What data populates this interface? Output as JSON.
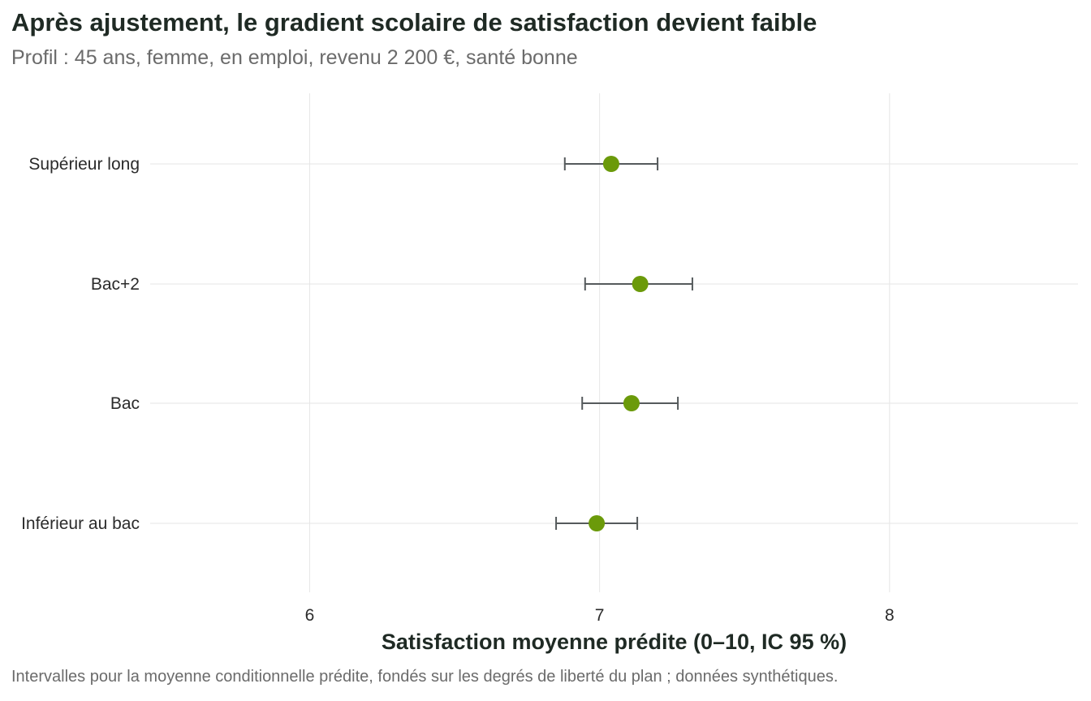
{
  "chart_data": {
    "type": "scatter",
    "title": "Après ajustement, le gradient scolaire de satisfaction devient faible",
    "subtitle": "Profil : 45 ans, femme, en emploi, revenu 2 200 €, santé bonne",
    "xlabel": "Satisfaction moyenne prédite (0–10, IC 95 %)",
    "caption": "Intervalles pour la moyenne conditionnelle prédite, fondés sur les degrés de liberté du plan ; données synthétiques.",
    "xlim": [
      5.45,
      8.65
    ],
    "xticks": [
      6,
      7,
      8
    ],
    "grid": true,
    "point_color": "#6b9a0a",
    "errorbar_color": "#555a5c",
    "categories": [
      "Supérieur long",
      "Bac+2",
      "Bac",
      "Inférieur au bac"
    ],
    "estimate": [
      7.04,
      7.14,
      7.11,
      6.99
    ],
    "ci_low": [
      6.88,
      6.95,
      6.94,
      6.85
    ],
    "ci_high": [
      7.2,
      7.32,
      7.27,
      7.13
    ]
  }
}
